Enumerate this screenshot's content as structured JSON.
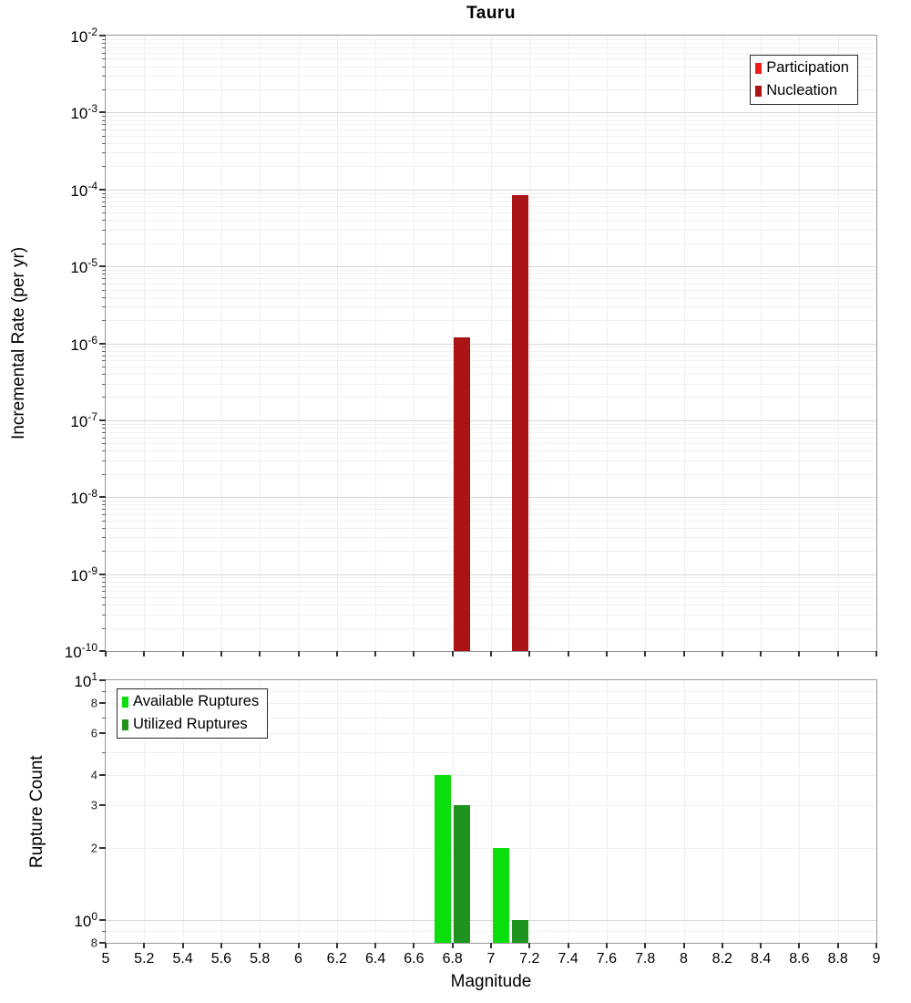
{
  "title": "Tauru",
  "xlabel": "Magnitude",
  "x_ticks": [
    {
      "value": 5,
      "label": "5"
    },
    {
      "value": 5.2,
      "label": "5.2"
    },
    {
      "value": 5.4,
      "label": "5.4"
    },
    {
      "value": 5.6,
      "label": "5.6"
    },
    {
      "value": 5.8,
      "label": "5.8"
    },
    {
      "value": 6,
      "label": "6"
    },
    {
      "value": 6.2,
      "label": "6.2"
    },
    {
      "value": 6.4,
      "label": "6.4"
    },
    {
      "value": 6.6,
      "label": "6.6"
    },
    {
      "value": 6.8,
      "label": "6.8"
    },
    {
      "value": 7,
      "label": "7"
    },
    {
      "value": 7.2,
      "label": "7.2"
    },
    {
      "value": 7.4,
      "label": "7.4"
    },
    {
      "value": 7.6,
      "label": "7.6"
    },
    {
      "value": 7.8,
      "label": "7.8"
    },
    {
      "value": 8,
      "label": "8"
    },
    {
      "value": 8.2,
      "label": "8.2"
    },
    {
      "value": 8.4,
      "label": "8.4"
    },
    {
      "value": 8.6,
      "label": "8.6"
    },
    {
      "value": 8.8,
      "label": "8.8"
    },
    {
      "value": 9,
      "label": "9"
    }
  ],
  "chart_data": [
    {
      "type": "bar",
      "title": "Tauru",
      "ylabel": "Incremental Rate (per yr)",
      "yscale": "log",
      "grid": true,
      "xlim": [
        5,
        9
      ],
      "ylim": [
        1e-10,
        0.01
      ],
      "legend_position": "top-right",
      "y_ticks": [
        {
          "value": 0.01,
          "mantissa": "10",
          "exponent": "-2"
        },
        {
          "value": 0.001,
          "mantissa": "10",
          "exponent": "-3"
        },
        {
          "value": 0.0001,
          "mantissa": "10",
          "exponent": "-4"
        },
        {
          "value": 1e-05,
          "mantissa": "10",
          "exponent": "-5"
        },
        {
          "value": 1e-06,
          "mantissa": "10",
          "exponent": "-6"
        },
        {
          "value": 1e-07,
          "mantissa": "10",
          "exponent": "-7"
        },
        {
          "value": 1e-08,
          "mantissa": "10",
          "exponent": "-8"
        },
        {
          "value": 1e-09,
          "mantissa": "10",
          "exponent": "-9"
        },
        {
          "value": 1e-10,
          "mantissa": "10",
          "exponent": "-10"
        }
      ],
      "legend": [
        {
          "label": "Participation",
          "color": "#ee1c1c"
        },
        {
          "label": "Nucleation",
          "color": "#aa1414"
        }
      ],
      "series": [
        {
          "name": "Nucleation",
          "color": "#aa1414",
          "bars": [
            {
              "x0": 6.8,
              "x1": 6.9,
              "value": 1.2e-06
            },
            {
              "x0": 7.1,
              "x1": 7.2,
              "value": 8.5e-05
            }
          ]
        }
      ]
    },
    {
      "type": "bar",
      "title": "",
      "ylabel": "Rupture Count",
      "yscale": "log",
      "grid": true,
      "xlim": [
        5,
        9
      ],
      "ylim": [
        0.8,
        10
      ],
      "legend_position": "top-left",
      "y_ticks": [
        {
          "value": 10,
          "mantissa": "10",
          "exponent": "1"
        },
        {
          "value": 8,
          "label": "8"
        },
        {
          "value": 6,
          "label": "6"
        },
        {
          "value": 4,
          "label": "4"
        },
        {
          "value": 3,
          "label": "3"
        },
        {
          "value": 2,
          "label": "2"
        },
        {
          "value": 1,
          "mantissa": "10",
          "exponent": "0"
        },
        {
          "value": 0.8,
          "label": "8"
        }
      ],
      "legend": [
        {
          "label": "Available Ruptures",
          "color": "#0cdd0c"
        },
        {
          "label": "Utilized Ruptures",
          "color": "#1e941e"
        }
      ],
      "series": [
        {
          "name": "Available Ruptures",
          "color": "#0cdd0c",
          "bars": [
            {
              "x0": 6.7,
              "x1": 6.8,
              "value": 4
            },
            {
              "x0": 7.0,
              "x1": 7.1,
              "value": 2
            }
          ]
        },
        {
          "name": "Utilized Ruptures",
          "color": "#1e941e",
          "bars": [
            {
              "x0": 6.8,
              "x1": 6.9,
              "value": 3
            },
            {
              "x0": 7.1,
              "x1": 7.2,
              "value": 1
            }
          ]
        }
      ]
    }
  ]
}
